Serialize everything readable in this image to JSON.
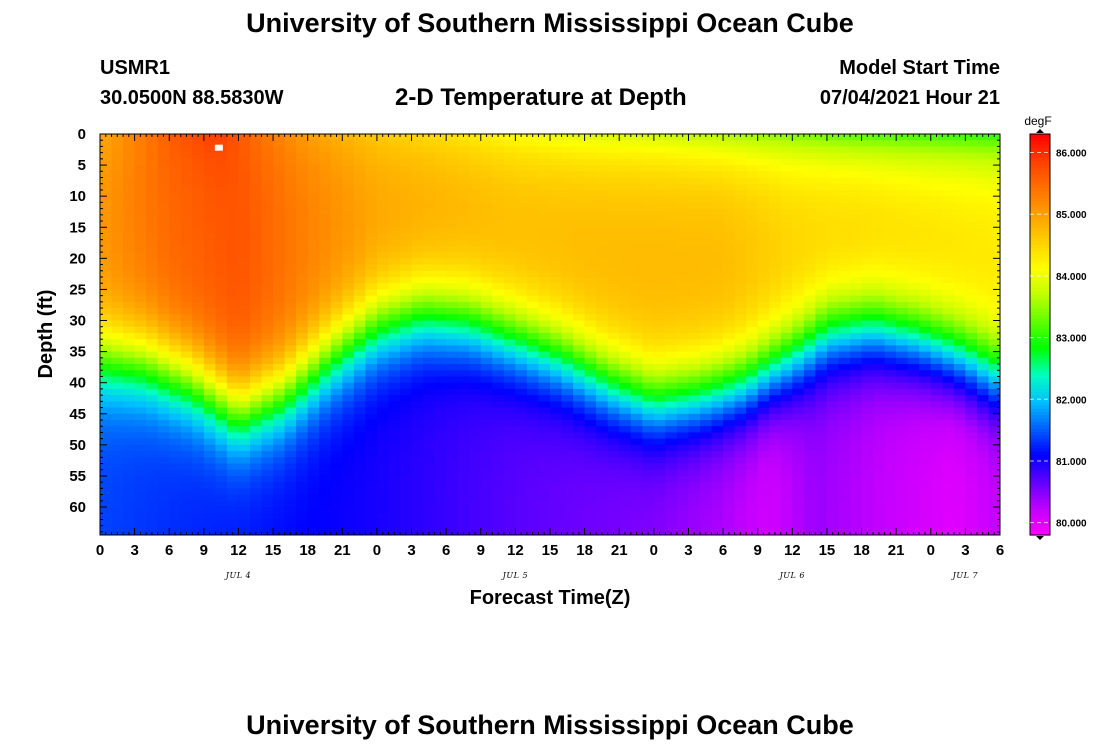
{
  "header": {
    "title": "University of Southern Mississippi Ocean Cube",
    "station_id": "USMR1",
    "station_coords": "30.0500N  88.5830W",
    "plot_title": "2-D Temperature at Depth",
    "model_start_label": "Model Start Time",
    "model_start_value": "07/04/2021 Hour 21"
  },
  "footer": {
    "title": "University of Southern Mississippi Ocean Cube"
  },
  "chart_data": {
    "type": "heatmap",
    "title": "2-D Temperature at Depth",
    "xlabel": "Forecast Time(Z)",
    "ylabel": "Depth (ft)",
    "x_range_hours": [
      0,
      78
    ],
    "y_range_ft": [
      0,
      64.5
    ],
    "x_tick_hours": [
      0,
      3,
      6,
      9,
      12,
      15,
      18,
      21,
      24,
      27,
      30,
      33,
      36,
      39,
      42,
      45,
      48,
      51,
      54,
      57,
      60,
      63,
      66,
      69,
      72,
      75,
      78
    ],
    "x_tick_labels": [
      "0",
      "3",
      "6",
      "9",
      "12",
      "15",
      "18",
      "21",
      "0",
      "3",
      "6",
      "9",
      "12",
      "15",
      "18",
      "21",
      "0",
      "3",
      "6",
      "9",
      "12",
      "15",
      "18",
      "21",
      "0",
      "3",
      "6"
    ],
    "y_ticks": [
      0,
      5,
      10,
      15,
      20,
      25,
      30,
      35,
      40,
      45,
      50,
      55,
      60
    ],
    "y_tick_labels": [
      "0",
      "5",
      "10",
      "15",
      "20",
      "25",
      "30",
      "35",
      "40",
      "45",
      "50",
      "55",
      "60"
    ],
    "date_labels": [
      {
        "label": "JUL 4",
        "hour": 12
      },
      {
        "label": "JUL 5",
        "hour": 36
      },
      {
        "label": "JUL 6",
        "hour": 60
      },
      {
        "label": "JUL 7",
        "hour": 75
      }
    ],
    "colorbar": {
      "unit": "degF",
      "min": 79.8,
      "max": 86.3,
      "ticks": [
        80,
        81,
        82,
        83,
        84,
        85,
        86
      ],
      "tick_labels": [
        "80.000",
        "81.000",
        "82.000",
        "83.000",
        "84.000",
        "85.000",
        "86.000"
      ],
      "colors": [
        "#ff00ff",
        "#c000ff",
        "#6000ff",
        "#0000ff",
        "#0060ff",
        "#00c0ff",
        "#00ffc0",
        "#00ff00",
        "#60ff00",
        "#c0ff00",
        "#ffff00",
        "#ffd000",
        "#ffa000",
        "#ff7000",
        "#ff4000",
        "#ff0000"
      ]
    },
    "thermocline_depth_ft": {
      "hours": [
        0,
        4,
        8,
        12,
        16,
        20,
        24,
        28,
        32,
        36,
        40,
        44,
        48,
        52,
        56,
        60,
        63,
        67,
        71,
        75,
        78
      ],
      "values": [
        36,
        37,
        40,
        45,
        42,
        36,
        31,
        29,
        30,
        33,
        36,
        40,
        43,
        42,
        40,
        36,
        32,
        31,
        33,
        36,
        39
      ]
    },
    "surface_temp_degF": {
      "hours": [
        0,
        6,
        10,
        14,
        18,
        24,
        30,
        36,
        42,
        48,
        54,
        60,
        66,
        72,
        78
      ],
      "values": [
        84.9,
        85.6,
        85.9,
        85.4,
        85.0,
        84.6,
        84.4,
        84.1,
        83.9,
        83.8,
        83.6,
        83.4,
        83.2,
        83.1,
        83.0
      ]
    },
    "mixed_layer_temp_degF": {
      "hours": [
        0,
        6,
        12,
        18,
        24,
        30,
        36,
        42,
        48,
        54,
        60,
        66,
        72,
        78
      ],
      "values": [
        85.1,
        85.5,
        85.7,
        85.3,
        85.0,
        84.9,
        84.8,
        84.8,
        84.8,
        84.8,
        84.6,
        84.6,
        84.5,
        84.4
      ]
    },
    "deep_temp_degF": {
      "hours": [
        0,
        12,
        24,
        36,
        48,
        54,
        58,
        62,
        68,
        74,
        78
      ],
      "values": [
        81.4,
        81.2,
        81.0,
        80.7,
        80.5,
        80.3,
        80.1,
        80.4,
        80.2,
        80.0,
        80.2
      ]
    },
    "marker": {
      "hour": 10.3,
      "depth_ft": 2.2
    }
  }
}
